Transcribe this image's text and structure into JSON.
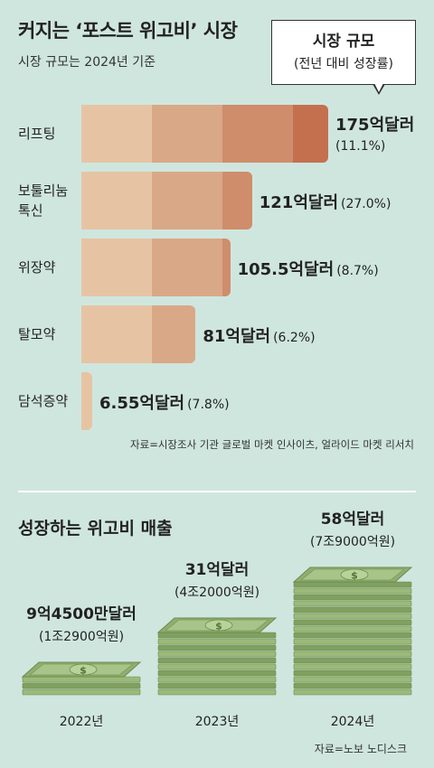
{
  "header": {
    "title": "커지는 ‘포스트 위고비’ 시장",
    "subtitle": "시장 규모는 2024년 기준",
    "legend_line1": "시장 규모",
    "legend_line2": "(전년 대비 성장률)"
  },
  "colors": {
    "background": "#cfe6df",
    "bar_segments": [
      "#e6c4a3",
      "#d9a887",
      "#cf8d6b",
      "#c4704f"
    ],
    "money_green": "#8fae6f"
  },
  "chart_data": [
    {
      "type": "bar",
      "orientation": "horizontal",
      "title": "커지는 ‘포스트 위고비’ 시장",
      "subtitle": "시장 규모는 2024년 기준",
      "categories": [
        "리프팅",
        "보툴리눔 톡신",
        "위장약",
        "탈모약",
        "담석증약"
      ],
      "category_lines": [
        [
          "리프팅"
        ],
        [
          "보툴리눔",
          "톡신"
        ],
        [
          "위장약"
        ],
        [
          "탈모약"
        ],
        [
          "담석증약"
        ]
      ],
      "values": [
        175,
        121,
        105.5,
        81,
        6.55
      ],
      "value_labels": [
        "175억달러",
        "121억달러",
        "105.5억달러",
        "81억달러",
        "6.55억달러"
      ],
      "growth_labels": [
        "(11.1%)",
        "(27.0%)",
        "(8.7%)",
        "(6.2%)",
        "(7.8%)"
      ],
      "unit": "억달러",
      "xlim": [
        0,
        175
      ],
      "source": "자료=시장조사 기관 글로벌 마켓 인사이츠, 얼라이드 마켓 리서치"
    },
    {
      "type": "bar",
      "title": "성장하는 위고비 매출",
      "categories": [
        "2022년",
        "2023년",
        "2024년"
      ],
      "values": [
        9.45,
        31,
        58
      ],
      "value_labels": [
        "9억4500만달러",
        "31억달러",
        "58억달러"
      ],
      "krw_labels": [
        "(1조2900억원)",
        "(4조2000억원)",
        "(7조9000억원)"
      ],
      "unit": "억달러",
      "source": "자료=노보 노디스크"
    }
  ]
}
